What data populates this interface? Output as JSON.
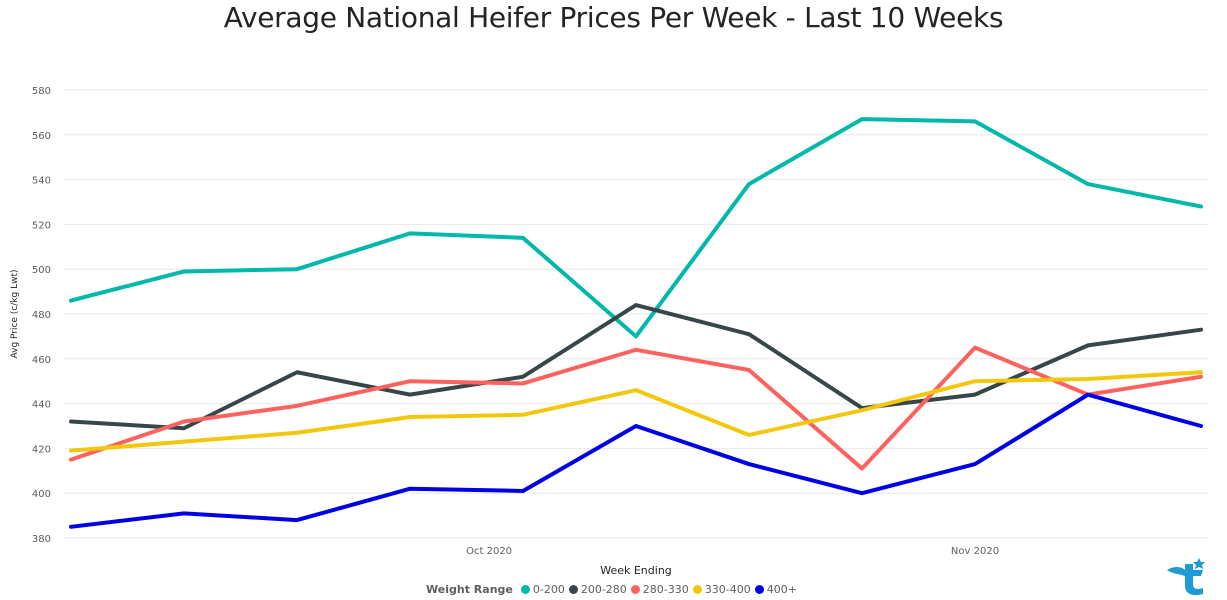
{
  "chart_data": {
    "type": "line",
    "title": "Average National Heifer Prices Per Week - Last 10 Weeks",
    "xlabel": "Week Ending",
    "ylabel": "Avg Price (c/kg Lwt)",
    "ylim": [
      380,
      580
    ],
    "yticks": [
      380,
      400,
      420,
      440,
      460,
      480,
      500,
      520,
      540,
      560,
      580
    ],
    "x": [
      0,
      1,
      2,
      3,
      4,
      5,
      6,
      7,
      8,
      9,
      10
    ],
    "xticks": [
      {
        "label": "Oct 2020",
        "x": 3.7
      },
      {
        "label": "Nov 2020",
        "x": 8.0
      }
    ],
    "grid": true,
    "legend_title": "Weight Range",
    "legend_position": "bottom",
    "series": [
      {
        "name": "0-200",
        "color": "#01B8AA",
        "values": [
          486,
          499,
          500,
          516,
          514,
          470,
          538,
          567,
          566,
          538,
          528
        ]
      },
      {
        "name": "200-280",
        "color": "#374649",
        "values": [
          432,
          429,
          454,
          444,
          452,
          484,
          471,
          438,
          444,
          466,
          473
        ]
      },
      {
        "name": "280-330",
        "color": "#FD625E",
        "values": [
          415,
          432,
          439,
          450,
          449,
          464,
          455,
          411,
          465,
          444,
          452
        ]
      },
      {
        "name": "330-400",
        "color": "#F2C80F",
        "values": [
          419,
          423,
          427,
          434,
          435,
          446,
          426,
          437,
          450,
          451,
          454
        ]
      },
      {
        "name": "400+",
        "color": "#0000E6",
        "values": [
          385,
          391,
          388,
          402,
          401,
          430,
          413,
          400,
          413,
          444,
          430
        ]
      }
    ]
  },
  "logo": {
    "name": "brand-logo",
    "color": "#1E9BD7"
  }
}
